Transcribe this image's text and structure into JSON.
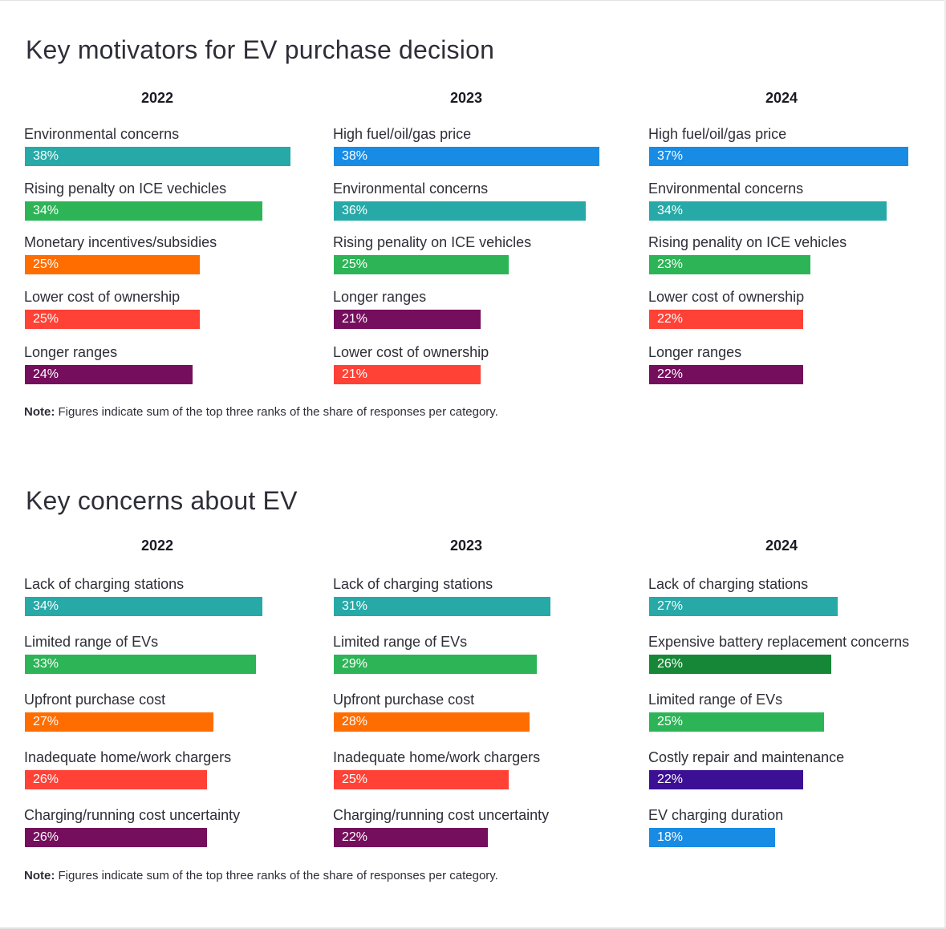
{
  "note_prefix": "Note:",
  "note_text": " Figures indicate sum of the top three ranks of the share of responses per category.",
  "chart_data": [
    {
      "type": "bar",
      "title": "Key motivators for EV purchase decision",
      "panels": [
        {
          "year": "2022",
          "categories": [
            "Environmental concerns",
            "Rising penalty on ICE vechicles",
            "Monetary incentives/subsidies",
            "Lower cost of ownership",
            "Longer ranges"
          ],
          "values": [
            38,
            34,
            25,
            25,
            24
          ],
          "labels": [
            "38%",
            "34%",
            "25%",
            "25%",
            "24%"
          ],
          "colors": [
            "#26a9a7",
            "#2db457",
            "#ff6d00",
            "#ff4136",
            "#750e5c"
          ]
        },
        {
          "year": "2023",
          "categories": [
            "High fuel/oil/gas price",
            "Environmental concerns",
            "Rising penality on ICE vehicles",
            "Longer ranges",
            "Lower cost of ownership"
          ],
          "values": [
            38,
            36,
            25,
            21,
            21
          ],
          "labels": [
            "38%",
            "36%",
            "25%",
            "21%",
            "21%"
          ],
          "colors": [
            "#188ce5",
            "#26a9a7",
            "#2db457",
            "#750e5c",
            "#ff4136"
          ]
        },
        {
          "year": "2024",
          "categories": [
            "High fuel/oil/gas price",
            "Environmental concerns",
            "Rising penality on ICE vehicles",
            "Lower cost of ownership",
            "Longer ranges"
          ],
          "values": [
            37,
            34,
            23,
            22,
            22
          ],
          "labels": [
            "37%",
            "34%",
            "23%",
            "22%",
            "22%"
          ],
          "colors": [
            "#188ce5",
            "#26a9a7",
            "#2db457",
            "#ff4136",
            "#750e5c"
          ]
        }
      ]
    },
    {
      "type": "bar",
      "title": "Key concerns about EV",
      "panels": [
        {
          "year": "2022",
          "categories": [
            "Lack of charging stations",
            "Limited range of EVs",
            "Upfront purchase cost",
            "Inadequate home/work chargers",
            "Charging/running cost uncertainty"
          ],
          "values": [
            34,
            33,
            27,
            26,
            26
          ],
          "labels": [
            "34%",
            "33%",
            "27%",
            "26%",
            "26%"
          ],
          "colors": [
            "#26a9a7",
            "#2db457",
            "#ff6d00",
            "#ff4136",
            "#750e5c"
          ]
        },
        {
          "year": "2023",
          "categories": [
            "Lack of charging stations",
            "Limited range of EVs",
            "Upfront purchase cost",
            "Inadequate home/work chargers",
            "Charging/running cost uncertainty"
          ],
          "values": [
            31,
            29,
            28,
            25,
            22
          ],
          "labels": [
            "31%",
            "29%",
            "28%",
            "25%",
            "22%"
          ],
          "colors": [
            "#26a9a7",
            "#2db457",
            "#ff6d00",
            "#ff4136",
            "#750e5c"
          ]
        },
        {
          "year": "2024",
          "categories": [
            "Lack of charging stations",
            "Expensive battery replacement concerns",
            "Limited range of EVs",
            "Costly repair and maintenance",
            "EV charging duration"
          ],
          "values": [
            27,
            26,
            25,
            22,
            18
          ],
          "labels": [
            "27%",
            "26%",
            "25%",
            "22%",
            "18%"
          ],
          "colors": [
            "#26a9a7",
            "#168736",
            "#2db457",
            "#3c1094",
            "#188ce5"
          ]
        }
      ]
    }
  ]
}
